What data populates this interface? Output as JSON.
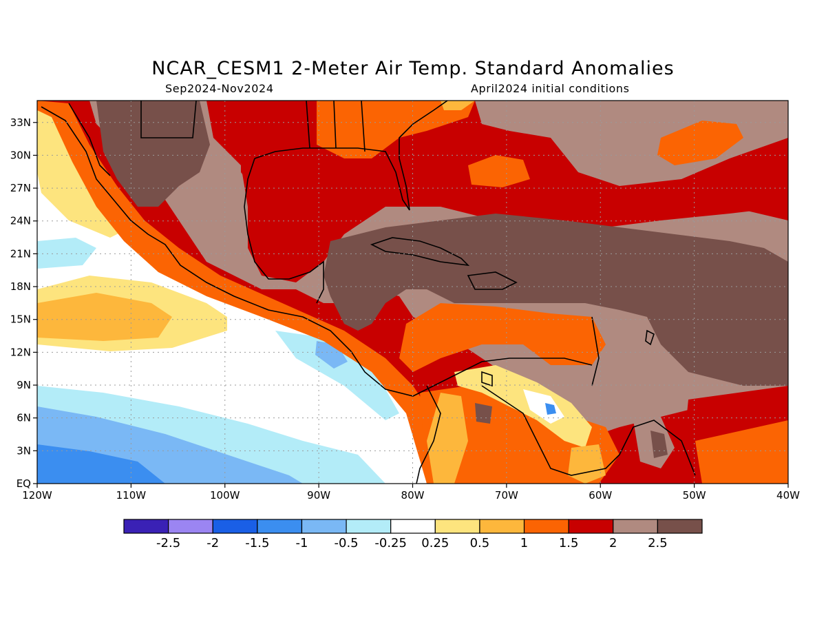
{
  "header": {
    "title": "NCAR_CESM1 2-Meter Air Temp. Standard Anomalies",
    "period": "Sep2024-Nov2024",
    "init": "April2024 initial conditions"
  },
  "map": {
    "lon_range": [
      -120,
      -40
    ],
    "lat_range": [
      0,
      35
    ],
    "lat_ticks": [
      {
        "v": 33,
        "label": "33N"
      },
      {
        "v": 30,
        "label": "30N"
      },
      {
        "v": 27,
        "label": "27N"
      },
      {
        "v": 24,
        "label": "24N"
      },
      {
        "v": 21,
        "label": "21N"
      },
      {
        "v": 18,
        "label": "18N"
      },
      {
        "v": 15,
        "label": "15N"
      },
      {
        "v": 12,
        "label": "12N"
      },
      {
        "v": 9,
        "label": "9N"
      },
      {
        "v": 6,
        "label": "6N"
      },
      {
        "v": 3,
        "label": "3N"
      },
      {
        "v": 0,
        "label": "EQ"
      }
    ],
    "lon_ticks": [
      {
        "v": -120,
        "label": "120W"
      },
      {
        "v": -110,
        "label": "110W"
      },
      {
        "v": -100,
        "label": "100W"
      },
      {
        "v": -90,
        "label": "90W"
      },
      {
        "v": -80,
        "label": "80W"
      },
      {
        "v": -70,
        "label": "70W"
      },
      {
        "v": -60,
        "label": "60W"
      },
      {
        "v": -50,
        "label": "50W"
      },
      {
        "v": -40,
        "label": "40W"
      }
    ],
    "grid": true
  },
  "colorbar": {
    "colors": [
      "#3a21b5",
      "#9b85f2",
      "#1a5fe6",
      "#3b8ef0",
      "#7ab8f5",
      "#b3ecf8",
      "#ffffff",
      "#fde47e",
      "#fdb73c",
      "#fb6403",
      "#c80000",
      "#b08a80",
      "#77504a"
    ],
    "labels": [
      "-2.5",
      "-2",
      "-1.5",
      "-1",
      "-0.5",
      "-0.25",
      "0.25",
      "0.5",
      "1",
      "1.5",
      "2",
      "2.5"
    ]
  }
}
